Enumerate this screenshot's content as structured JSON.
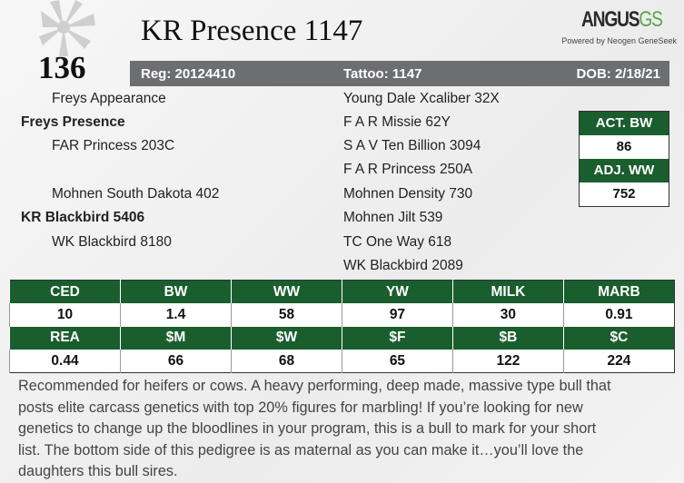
{
  "header": {
    "name": "KR Presence 1147",
    "lot": "136",
    "reg": "Reg: 20124410",
    "tattoo": "Tattoo: 1147",
    "dob": "DOB: 2/18/21"
  },
  "logo": {
    "brand": "ANGUS",
    "suffix": "GS",
    "tagline": "Powered by Neogen GeneSeek"
  },
  "pedigree": {
    "left": [
      "Freys Appearance",
      "Freys Presence",
      "FAR Princess 203C",
      "Mohnen South Dakota 402",
      "KR Blackbird 5406",
      "WK Blackbird 8180"
    ],
    "right": [
      "Young Dale Xcaliber 32X",
      "F A R Missie 62Y",
      "S A V Ten Billion 3094",
      "F A R Princess 250A",
      "Mohnen Density 730",
      "Mohnen Jilt 539",
      "TC One Way 618",
      "WK Blackbird 2089"
    ]
  },
  "weights": {
    "act_bw_label": "ACT. BW",
    "act_bw": "86",
    "adj_ww_label": "ADJ. WW",
    "adj_ww": "752"
  },
  "epd": {
    "row1_headers": [
      "CED",
      "BW",
      "WW",
      "YW",
      "MILK",
      "MARB"
    ],
    "row1_values": [
      "10",
      "1.4",
      "58",
      "97",
      "30",
      "0.91"
    ],
    "row2_headers": [
      "REA",
      "$M",
      "$W",
      "$F",
      "$B",
      "$C"
    ],
    "row2_values": [
      "0.44",
      "66",
      "68",
      "65",
      "122",
      "224"
    ]
  },
  "description": [
    "Recommended for heifers or cows. A heavy performing, deep made, massive type bull that",
    "posts elite carcass genetics with top 20% figures for marbling! If you’re looking for new",
    "genetics to change up the bloodlines in your program, this is a bull to mark for your short",
    "list. The bottom side of this pedigree is as maternal as you can make it…you’ll love the",
    "daughters this bull sires."
  ],
  "colors": {
    "green": "#1a5e2e",
    "bar": "#6d6e71"
  }
}
